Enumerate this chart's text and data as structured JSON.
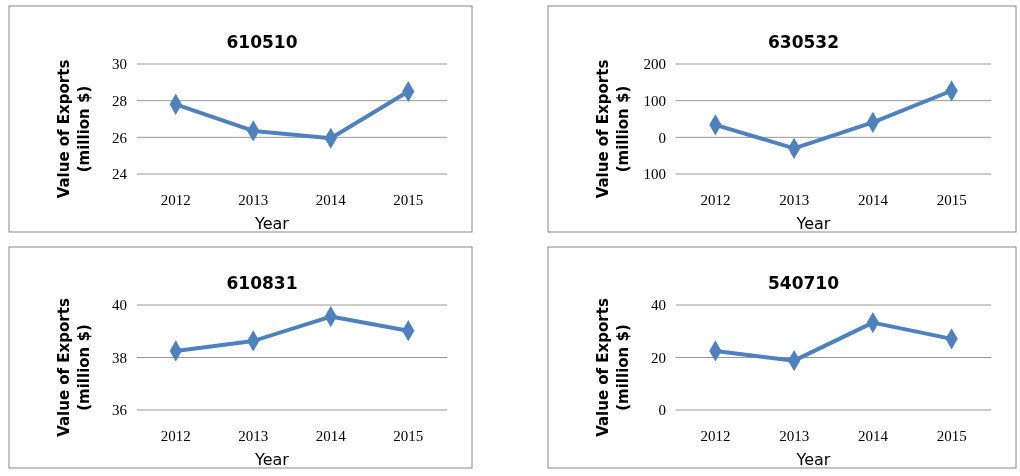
{
  "chart_data": [
    {
      "type": "line",
      "title": "610510",
      "xlabel": "Year",
      "ylabel": "Value of Exports (million $)",
      "categories": [
        "2012",
        "2013",
        "2014",
        "2015"
      ],
      "series": [
        {
          "color": "#4f81bd",
          "values": [
            27.8,
            26.35,
            25.95,
            28.5
          ]
        }
      ],
      "ylim": [
        24,
        30
      ],
      "yticks": [
        24,
        26,
        28,
        30
      ],
      "grid": "y",
      "marker": "diamond"
    },
    {
      "type": "line",
      "title": "630532",
      "xlabel": "Year",
      "ylabel": "Value of Exports (million $)",
      "categories": [
        "2012",
        "2013",
        "2014",
        "2015"
      ],
      "series": [
        {
          "color": "#4f81bd",
          "values": [
            34,
            -30,
            41,
            127
          ]
        }
      ],
      "ylim": [
        -100,
        200
      ],
      "yticks": [
        {
          "value": -100,
          "label": "100"
        },
        0,
        100,
        200
      ],
      "grid": "y",
      "marker": "diamond"
    },
    {
      "type": "line",
      "title": "610831",
      "xlabel": "Year",
      "ylabel": "Value of Exports (million $)",
      "categories": [
        "2012",
        "2013",
        "2014",
        "2015"
      ],
      "series": [
        {
          "color": "#4f81bd",
          "values": [
            38.25,
            38.63,
            39.56,
            39.02
          ]
        }
      ],
      "ylim": [
        36,
        40
      ],
      "yticks": [
        36,
        38,
        40
      ],
      "grid": "y",
      "marker": "diamond"
    },
    {
      "type": "line",
      "title": "540710",
      "xlabel": "Year",
      "ylabel": "Value of Exports (million $)",
      "categories": [
        "2012",
        "2013",
        "2014",
        "2015"
      ],
      "series": [
        {
          "color": "#4f81bd",
          "values": [
            22.5,
            18.8,
            33.3,
            27.1
          ]
        }
      ],
      "ylim": [
        0,
        40
      ],
      "yticks": [
        0,
        20,
        40
      ],
      "grid": "y",
      "marker": "diamond"
    }
  ]
}
